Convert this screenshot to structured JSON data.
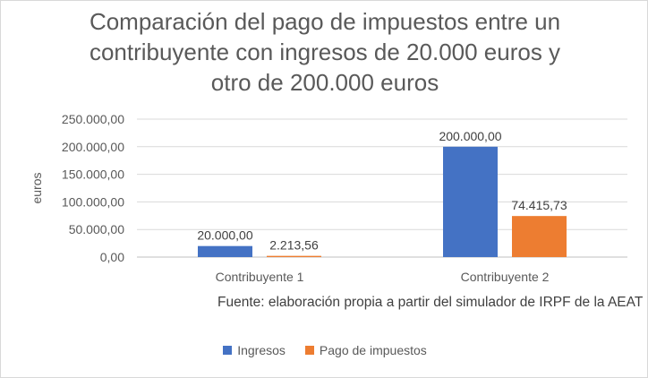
{
  "chart_data": {
    "type": "bar",
    "title": "Comparación del pago de impuestos entre un contribuyente con ingresos de 20.000 euros y otro de 200.000 euros",
    "title_lines": [
      "Comparación del pago de impuestos entre un",
      "contribuyente con ingresos de 20.000 euros y",
      "otro de 200.000 euros"
    ],
    "categories": [
      "Contribuyente 1",
      "Contribuyente 2"
    ],
    "series": [
      {
        "name": "Ingresos",
        "color": "#4472c4",
        "values": [
          20000,
          200000
        ],
        "labels": [
          "20.000,00",
          "200.000,00"
        ]
      },
      {
        "name": "Pago de impuestos",
        "color": "#ed7d31",
        "values": [
          2213.56,
          74415.73
        ],
        "labels": [
          "2.213,56",
          "74.415,73"
        ]
      }
    ],
    "ylabel": "euros",
    "ylim": [
      0,
      250000
    ],
    "yticks": [
      0,
      50000,
      100000,
      150000,
      200000,
      250000
    ],
    "ytick_labels": [
      "0,00",
      "50.000,00",
      "100.000,00",
      "150.000,00",
      "200.000,00",
      "250.000,00"
    ],
    "grid": true,
    "legend_position": "bottom",
    "source_note": "Fuente: elaboración propia a partir del simulador de IRPF de la AEAT"
  }
}
